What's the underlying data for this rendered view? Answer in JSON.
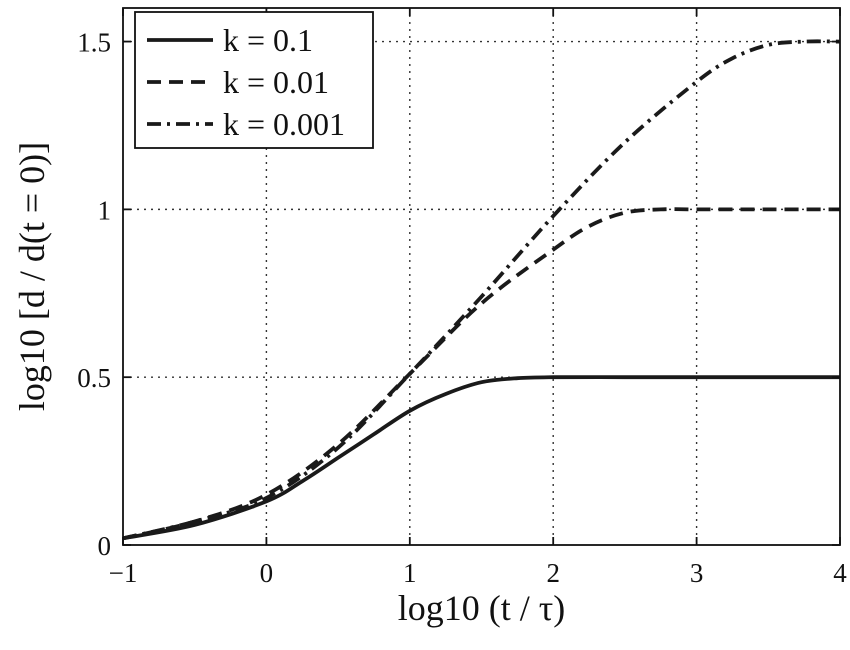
{
  "chart_data": {
    "type": "line",
    "xlabel": "log10 (t / τ)",
    "ylabel": "log10 [d / d(t = 0)]",
    "xlim": [
      -1,
      4
    ],
    "ylim": [
      0,
      1.6
    ],
    "xticks": [
      -1,
      0,
      1,
      2,
      3,
      4
    ],
    "yticks": [
      0,
      0.5,
      1,
      1.5
    ],
    "xtick_labels": [
      "−1",
      "0",
      "1",
      "2",
      "3",
      "4"
    ],
    "ytick_labels": [
      "0",
      "0.5",
      "1",
      "1.5"
    ],
    "grid": true,
    "legend_position": "top-left",
    "series": [
      {
        "name": "k = 0.1",
        "style": "solid",
        "x": [
          -1,
          -0.5,
          0,
          0.25,
          0.5,
          0.75,
          1,
          1.25,
          1.5,
          1.75,
          2,
          2.5,
          3,
          3.5,
          4
        ],
        "y": [
          0.02,
          0.06,
          0.13,
          0.19,
          0.26,
          0.33,
          0.4,
          0.45,
          0.485,
          0.497,
          0.5,
          0.5,
          0.5,
          0.5,
          0.5
        ]
      },
      {
        "name": "k = 0.01",
        "style": "dashed",
        "x": [
          -1,
          -0.5,
          0,
          0.5,
          1,
          1.5,
          2,
          2.25,
          2.5,
          2.75,
          3,
          3.5,
          4
        ],
        "y": [
          0.02,
          0.07,
          0.15,
          0.3,
          0.51,
          0.72,
          0.88,
          0.95,
          0.99,
          1.0,
          1.0,
          1.0,
          1.0
        ]
      },
      {
        "name": "k = 0.001",
        "style": "dashdot",
        "x": [
          -1,
          -0.5,
          0,
          0.5,
          1,
          1.5,
          2,
          2.5,
          3,
          3.25,
          3.5,
          3.75,
          4
        ],
        "y": [
          0.02,
          0.07,
          0.14,
          0.29,
          0.51,
          0.74,
          0.98,
          1.2,
          1.38,
          1.45,
          1.49,
          1.5,
          1.5
        ]
      }
    ]
  }
}
